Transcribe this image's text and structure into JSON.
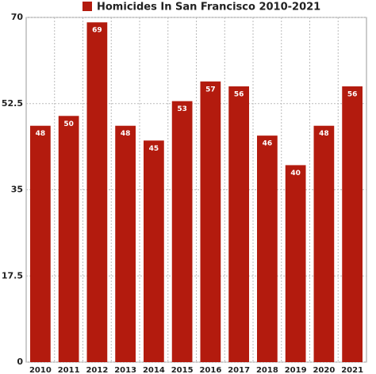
{
  "chart_data": {
    "type": "bar",
    "categories": [
      "2010",
      "2011",
      "2012",
      "2013",
      "2014",
      "2015",
      "2016",
      "2017",
      "2018",
      "2019",
      "2020",
      "2021"
    ],
    "series": [
      {
        "name": "Homicides In San Francisco 2010-2021",
        "color": "#b31b0e",
        "values": [
          48,
          50,
          69,
          48,
          45,
          53,
          57,
          56,
          46,
          40,
          48,
          56
        ]
      }
    ],
    "ylim": [
      0,
      70
    ],
    "yticks": [
      0,
      17.5,
      35,
      52.5,
      70
    ],
    "grid": true,
    "legend": "top"
  }
}
